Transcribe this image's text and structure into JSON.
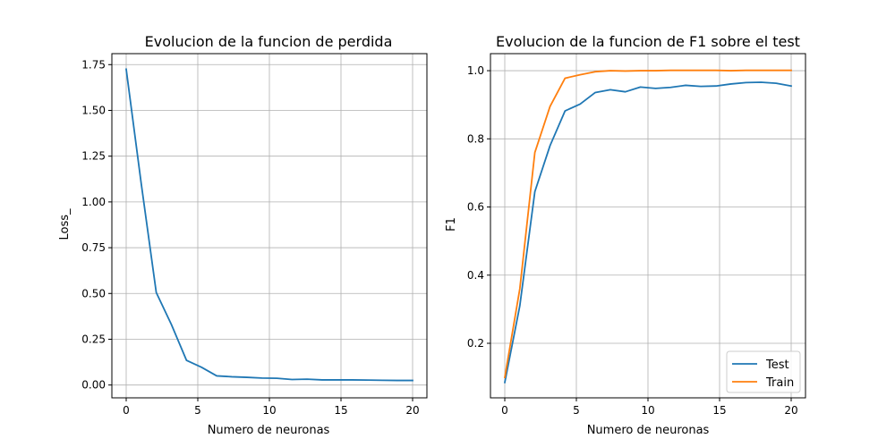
{
  "chart_data": [
    {
      "type": "line",
      "title": "Evolucion de la funcion de perdida",
      "xlabel": "Numero de neuronas",
      "ylabel": "Loss_",
      "xlim": [
        -1,
        21
      ],
      "ylim": [
        -0.07,
        1.81
      ],
      "xticks": [
        0,
        5,
        10,
        15,
        20
      ],
      "xtick_labels": [
        "0",
        "5",
        "10",
        "15",
        "20"
      ],
      "yticks": [
        0,
        0.25,
        0.5,
        0.75,
        1.0,
        1.25,
        1.5,
        1.75
      ],
      "ytick_labels": [
        "0.00",
        "0.25",
        "0.50",
        "0.75",
        "1.00",
        "1.25",
        "1.50",
        "1.75"
      ],
      "grid": true,
      "legend": null,
      "x": [
        0,
        1.05,
        2.1,
        3.16,
        4.21,
        5.26,
        6.32,
        7.37,
        8.42,
        9.47,
        10.53,
        11.58,
        12.63,
        13.68,
        14.74,
        15.79,
        16.84,
        17.89,
        18.95,
        20
      ],
      "series": [
        {
          "color": "#1f77b4",
          "values": [
            1.725,
            1.1,
            0.505,
            0.33,
            0.135,
            0.097,
            0.05,
            0.045,
            0.042,
            0.038,
            0.037,
            0.03,
            0.032,
            0.028,
            0.028,
            0.028,
            0.027,
            0.026,
            0.025,
            0.025
          ]
        }
      ]
    },
    {
      "type": "line",
      "title": "Evolucion de la funcion de F1 sobre el test",
      "xlabel": "Numero de neuronas",
      "ylabel": "F1",
      "xlim": [
        -1,
        21
      ],
      "ylim": [
        0.04,
        1.05
      ],
      "xticks": [
        0,
        5,
        10,
        15,
        20
      ],
      "xtick_labels": [
        "0",
        "5",
        "10",
        "15",
        "20"
      ],
      "yticks": [
        0.2,
        0.4,
        0.6,
        0.8,
        1.0
      ],
      "ytick_labels": [
        "0.2",
        "0.4",
        "0.6",
        "0.8",
        "1.0"
      ],
      "grid": true,
      "legend": "lower-right",
      "x": [
        0,
        1.05,
        2.1,
        3.16,
        4.21,
        5.26,
        6.32,
        7.37,
        8.42,
        9.47,
        10.53,
        11.58,
        12.63,
        13.68,
        14.74,
        15.79,
        16.84,
        17.89,
        18.95,
        20
      ],
      "series": [
        {
          "name": "Test",
          "color": "#1f77b4",
          "values": [
            0.085,
            0.31,
            0.645,
            0.78,
            0.882,
            0.902,
            0.936,
            0.944,
            0.938,
            0.952,
            0.948,
            0.951,
            0.957,
            0.954,
            0.955,
            0.961,
            0.965,
            0.966,
            0.963,
            0.955
          ]
        },
        {
          "name": "Train",
          "color": "#ff7f0e",
          "values": [
            0.1,
            0.36,
            0.76,
            0.895,
            0.978,
            0.988,
            0.997,
            1.0,
            0.999,
            1.0,
            1.0,
            1.001,
            1.001,
            1.001,
            1.001,
            1.0,
            1.001,
            1.001,
            1.001,
            1.001
          ]
        }
      ]
    }
  ]
}
